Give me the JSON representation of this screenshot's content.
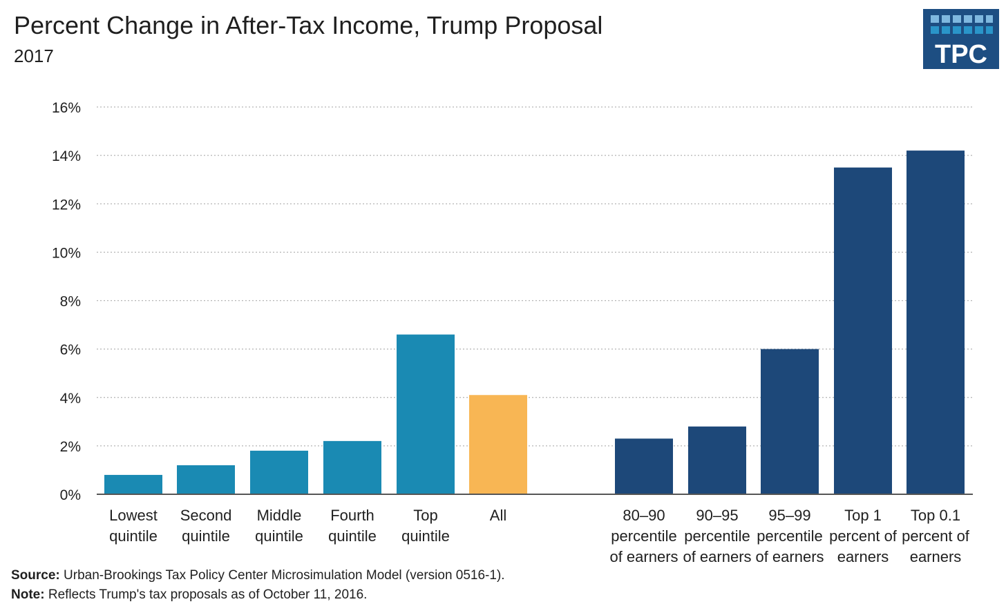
{
  "header": {
    "title": "Percent Change in After-Tax Income, Trump Proposal",
    "subtitle": "2017"
  },
  "logo": {
    "text": "TPC",
    "color": "#1d4e82"
  },
  "footer": {
    "source_label": "Source:",
    "source_text": "Urban-Brookings Tax Policy Center Microsimulation Model (version 0516-1).",
    "note_label": "Note:",
    "note_text": "Reflects Trump's tax proposals as of October 11, 2016."
  },
  "colors": {
    "quintile": "#1a8ab3",
    "all": "#f8b654",
    "top": "#1d4879",
    "grid": "#b3b3b3",
    "axis": "#555555"
  },
  "chart_data": {
    "type": "bar",
    "title": "Percent Change in After-Tax Income, Trump Proposal",
    "subtitle": "2017",
    "xlabel": "",
    "ylabel": "",
    "ylim": [
      0,
      16
    ],
    "yticks": [
      0,
      2,
      4,
      6,
      8,
      10,
      12,
      14,
      16
    ],
    "ytick_labels": [
      "0%",
      "2%",
      "4%",
      "6%",
      "8%",
      "10%",
      "12%",
      "14%",
      "16%"
    ],
    "grid": true,
    "categories": [
      [
        "Lowest",
        "quintile"
      ],
      [
        "Second",
        "quintile"
      ],
      [
        "Middle",
        "quintile"
      ],
      [
        "Fourth",
        "quintile"
      ],
      [
        "Top",
        "quintile"
      ],
      [
        "All"
      ],
      [
        "80–90",
        "percentile",
        "of earners"
      ],
      [
        "90–95",
        "percentile",
        "of earners"
      ],
      [
        "95–99",
        "percentile",
        "of earners"
      ],
      [
        "Top 1",
        "percent of",
        "earners"
      ],
      [
        "Top 0.1",
        "percent of",
        "earners"
      ]
    ],
    "values": [
      0.8,
      1.2,
      1.8,
      2.2,
      6.6,
      4.1,
      2.3,
      2.8,
      6.0,
      13.5,
      14.2
    ],
    "groups": [
      "quintile",
      "quintile",
      "quintile",
      "quintile",
      "quintile",
      "all",
      "top",
      "top",
      "top",
      "top",
      "top"
    ]
  }
}
